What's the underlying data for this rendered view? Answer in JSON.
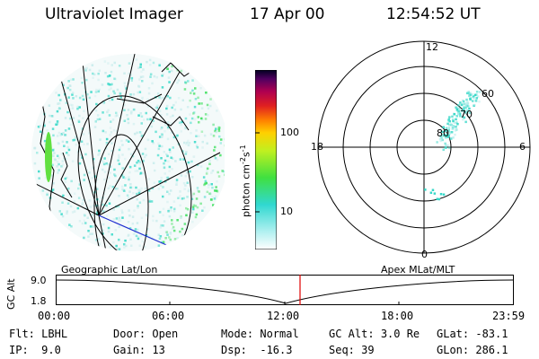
{
  "header": {
    "title": "Ultraviolet Imager",
    "date": "17 Apr 00",
    "time": "12:54:52 UT"
  },
  "colorbar": {
    "label_prefix": "photon cm",
    "label_exp1": "-2",
    "label_mid": "s",
    "label_exp2": "-1",
    "tick_100": "100",
    "tick_10": "10"
  },
  "polar": {
    "label_top": "12",
    "label_left": "18",
    "label_right": "6",
    "label_bottom": "0",
    "ring_60": "60",
    "ring_70": "70",
    "ring_80": "80"
  },
  "strip": {
    "left_title": "Geographic Lat/Lon",
    "right_title": "Apex MLat/MLT",
    "axis_label": "GC Alt",
    "y_top": "9.0",
    "y_bottom": "1.8",
    "x_ticks": [
      "00:00",
      "06:00",
      "12:00",
      "18:00",
      "23:59"
    ]
  },
  "info": {
    "flt_label": "Flt:",
    "flt_value": "LBHL",
    "ip_label": "IP:",
    "ip_value": "9.0",
    "door_label": "Door:",
    "door_value": "Open",
    "gain_label": "Gain:",
    "gain_value": "13",
    "mode_label": "Mode:",
    "mode_value": "Normal",
    "dsp_label": "Dsp:",
    "dsp_value": "-16.3",
    "gcalt_label": "GC Alt:",
    "gcalt_value": "3.0 Re",
    "seq_label": "Seq:",
    "seq_value": "39",
    "glat_label": "GLat:",
    "glat_value": "-83.1",
    "glon_label": "GLon:",
    "glon_value": "286.1"
  },
  "colors": {
    "background": "#ffffff",
    "aurora_cyan": "#38d8c8",
    "aurora_green": "#40e060",
    "marker_red": "#e00000",
    "track_blue": "#2030d0"
  }
}
